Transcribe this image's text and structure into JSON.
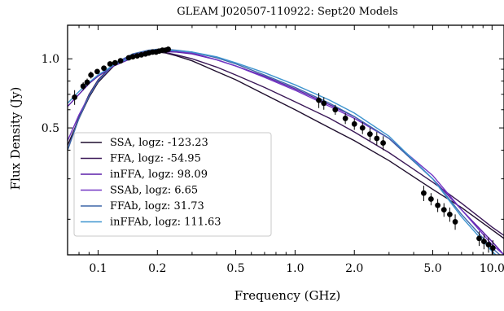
{
  "chart_data": {
    "type": "scatter",
    "title": "GLEAM J020507-110922: Sept20 Models",
    "xlabel": "Frequency (GHz)",
    "ylabel": "Flux Density (Jy)",
    "x_scale": "log",
    "y_scale": "log",
    "xlim": [
      0.07,
      11.5
    ],
    "ylim": [
      0.14,
      1.4
    ],
    "x_ticks": [
      {
        "value": 0.1,
        "label": "0.1"
      },
      {
        "value": 0.2,
        "label": "0.2"
      },
      {
        "value": 0.5,
        "label": "0.5"
      },
      {
        "value": 1.0,
        "label": "1.0"
      },
      {
        "value": 2.0,
        "label": "2.0"
      },
      {
        "value": 5.0,
        "label": "5.0"
      },
      {
        "value": 10.0,
        "label": "10.0"
      }
    ],
    "y_ticks": [
      {
        "value": 0.5,
        "label": "0.5"
      },
      {
        "value": 1.0,
        "label": "1.0"
      }
    ],
    "grid": false,
    "legend_position": "bottom-left",
    "data_points": {
      "name": "",
      "x": [
        0.076,
        0.084,
        0.088,
        0.092,
        0.099,
        0.107,
        0.115,
        0.122,
        0.13,
        0.143,
        0.15,
        0.158,
        0.166,
        0.174,
        0.181,
        0.189,
        0.197,
        0.204,
        0.212,
        0.22,
        0.227,
        1.32,
        1.4,
        1.6,
        1.8,
        2.0,
        2.2,
        2.4,
        2.6,
        2.8,
        4.5,
        4.9,
        5.3,
        5.7,
        6.1,
        6.5,
        8.6,
        9.1,
        9.6,
        10.1
      ],
      "y": [
        0.68,
        0.76,
        0.79,
        0.85,
        0.88,
        0.91,
        0.95,
        0.96,
        0.98,
        1.01,
        1.02,
        1.03,
        1.04,
        1.05,
        1.06,
        1.07,
        1.07,
        1.08,
        1.09,
        1.09,
        1.1,
        0.66,
        0.64,
        0.6,
        0.55,
        0.52,
        0.5,
        0.47,
        0.45,
        0.43,
        0.26,
        0.245,
        0.23,
        0.22,
        0.21,
        0.195,
        0.165,
        0.16,
        0.155,
        0.15
      ],
      "yerr": [
        0.05,
        0.03,
        0.03,
        0.03,
        0.02,
        0.02,
        0.02,
        0.02,
        0.02,
        0.02,
        0.02,
        0.02,
        0.02,
        0.02,
        0.02,
        0.02,
        0.02,
        0.02,
        0.02,
        0.02,
        0.02,
        0.05,
        0.04,
        0.03,
        0.03,
        0.03,
        0.03,
        0.03,
        0.03,
        0.03,
        0.02,
        0.015,
        0.015,
        0.015,
        0.015,
        0.015,
        0.012,
        0.012,
        0.012,
        0.012
      ]
    },
    "series": [
      {
        "name": "SSA, logz: -123.23",
        "color": "#1f0f2e",
        "x": [
          0.07,
          0.08,
          0.09,
          0.1,
          0.12,
          0.15,
          0.18,
          0.2,
          0.22,
          0.25,
          0.3,
          0.4,
          0.5,
          0.7,
          1.0,
          1.5,
          2.0,
          3.0,
          5.0,
          7.0,
          10.0,
          11.5
        ],
        "y": [
          0.42,
          0.55,
          0.68,
          0.79,
          0.93,
          1.03,
          1.065,
          1.07,
          1.06,
          1.03,
          0.98,
          0.88,
          0.81,
          0.7,
          0.6,
          0.5,
          0.44,
          0.36,
          0.27,
          0.225,
          0.18,
          0.165
        ]
      },
      {
        "name": "FFA, logz: -54.95",
        "color": "#3a1857",
        "x": [
          0.07,
          0.08,
          0.09,
          0.1,
          0.12,
          0.15,
          0.18,
          0.2,
          0.22,
          0.25,
          0.3,
          0.4,
          0.5,
          0.7,
          1.0,
          1.5,
          2.0,
          3.0,
          5.0,
          7.0,
          10.0,
          11.5
        ],
        "y": [
          0.4,
          0.56,
          0.7,
          0.81,
          0.95,
          1.04,
          1.07,
          1.075,
          1.065,
          1.04,
          1.0,
          0.92,
          0.85,
          0.75,
          0.65,
          0.55,
          0.48,
          0.39,
          0.29,
          0.235,
          0.185,
          0.17
        ]
      },
      {
        "name": "inFFA, logz: 98.09",
        "color": "#5b1fa8",
        "x": [
          0.07,
          0.08,
          0.09,
          0.1,
          0.12,
          0.15,
          0.18,
          0.2,
          0.22,
          0.25,
          0.3,
          0.4,
          0.5,
          0.7,
          1.0,
          1.5,
          2.0,
          3.0,
          5.0,
          7.0,
          10.0,
          11.5
        ],
        "y": [
          0.62,
          0.7,
          0.78,
          0.84,
          0.93,
          1.01,
          1.06,
          1.07,
          1.075,
          1.07,
          1.05,
          0.99,
          0.93,
          0.84,
          0.74,
          0.63,
          0.56,
          0.45,
          0.3,
          0.22,
          0.16,
          0.14
        ]
      },
      {
        "name": "SSAb, logz: 6.65",
        "color": "#7236c4",
        "x": [
          0.07,
          0.08,
          0.09,
          0.1,
          0.12,
          0.15,
          0.18,
          0.2,
          0.22,
          0.25,
          0.3,
          0.4,
          0.5,
          0.7,
          1.0,
          1.5,
          2.0,
          3.0,
          5.0,
          7.0,
          10.0,
          11.5
        ],
        "y": [
          0.44,
          0.57,
          0.69,
          0.8,
          0.94,
          1.04,
          1.08,
          1.09,
          1.09,
          1.08,
          1.06,
          0.99,
          0.93,
          0.83,
          0.73,
          0.62,
          0.55,
          0.45,
          0.31,
          0.22,
          0.155,
          0.14
        ]
      },
      {
        "name": "FFAb, logz: 31.73",
        "color": "#3d67a8",
        "x": [
          0.07,
          0.08,
          0.09,
          0.1,
          0.12,
          0.15,
          0.18,
          0.2,
          0.22,
          0.25,
          0.3,
          0.4,
          0.5,
          0.7,
          1.0,
          1.5,
          2.0,
          3.0,
          5.0,
          7.0,
          10.0,
          11.5
        ],
        "y": [
          0.4,
          0.55,
          0.69,
          0.8,
          0.95,
          1.05,
          1.09,
          1.1,
          1.1,
          1.09,
          1.07,
          1.01,
          0.95,
          0.85,
          0.75,
          0.64,
          0.56,
          0.45,
          0.3,
          0.21,
          0.15,
          0.135
        ]
      },
      {
        "name": "inFFAb, logz: 111.63",
        "color": "#3f95cf",
        "x": [
          0.07,
          0.08,
          0.09,
          0.1,
          0.12,
          0.15,
          0.18,
          0.2,
          0.22,
          0.25,
          0.3,
          0.4,
          0.5,
          0.7,
          1.0,
          1.5,
          2.0,
          3.0,
          5.0,
          7.0,
          10.0,
          11.5
        ],
        "y": [
          0.64,
          0.72,
          0.79,
          0.85,
          0.94,
          1.02,
          1.07,
          1.085,
          1.09,
          1.085,
          1.07,
          1.02,
          0.96,
          0.87,
          0.77,
          0.66,
          0.58,
          0.46,
          0.3,
          0.205,
          0.145,
          0.13
        ]
      }
    ]
  }
}
